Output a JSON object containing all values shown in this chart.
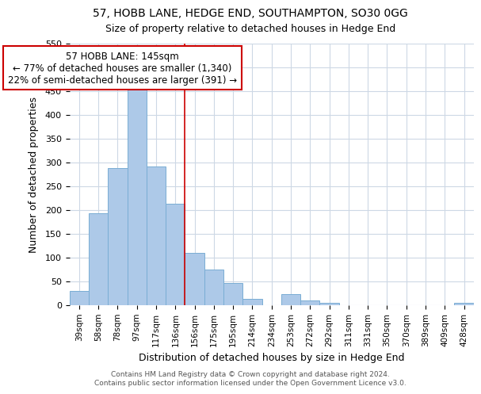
{
  "title": "57, HOBB LANE, HEDGE END, SOUTHAMPTON, SO30 0GG",
  "subtitle": "Size of property relative to detached houses in Hedge End",
  "xlabel": "Distribution of detached houses by size in Hedge End",
  "ylabel": "Number of detached properties",
  "bin_labels": [
    "39sqm",
    "58sqm",
    "78sqm",
    "97sqm",
    "117sqm",
    "136sqm",
    "156sqm",
    "175sqm",
    "195sqm",
    "214sqm",
    "234sqm",
    "253sqm",
    "272sqm",
    "292sqm",
    "311sqm",
    "331sqm",
    "350sqm",
    "370sqm",
    "389sqm",
    "409sqm",
    "428sqm"
  ],
  "bar_heights": [
    30,
    192,
    288,
    459,
    291,
    213,
    110,
    74,
    46,
    13,
    0,
    22,
    9,
    5,
    0,
    0,
    0,
    0,
    0,
    0,
    5
  ],
  "bar_color": "#adc9e8",
  "bar_edge_color": "#7aadd4",
  "vline_x_index": 5.5,
  "vline_color": "#cc0000",
  "annotation_title": "57 HOBB LANE: 145sqm",
  "annotation_line1": "← 77% of detached houses are smaller (1,340)",
  "annotation_line2": "22% of semi-detached houses are larger (391) →",
  "annotation_box_color": "#cc0000",
  "ylim": [
    0,
    550
  ],
  "yticks": [
    0,
    50,
    100,
    150,
    200,
    250,
    300,
    350,
    400,
    450,
    500,
    550
  ],
  "footer1": "Contains HM Land Registry data © Crown copyright and database right 2024.",
  "footer2": "Contains public sector information licensed under the Open Government Licence v3.0.",
  "background_color": "#ffffff",
  "grid_color": "#cdd8e5"
}
